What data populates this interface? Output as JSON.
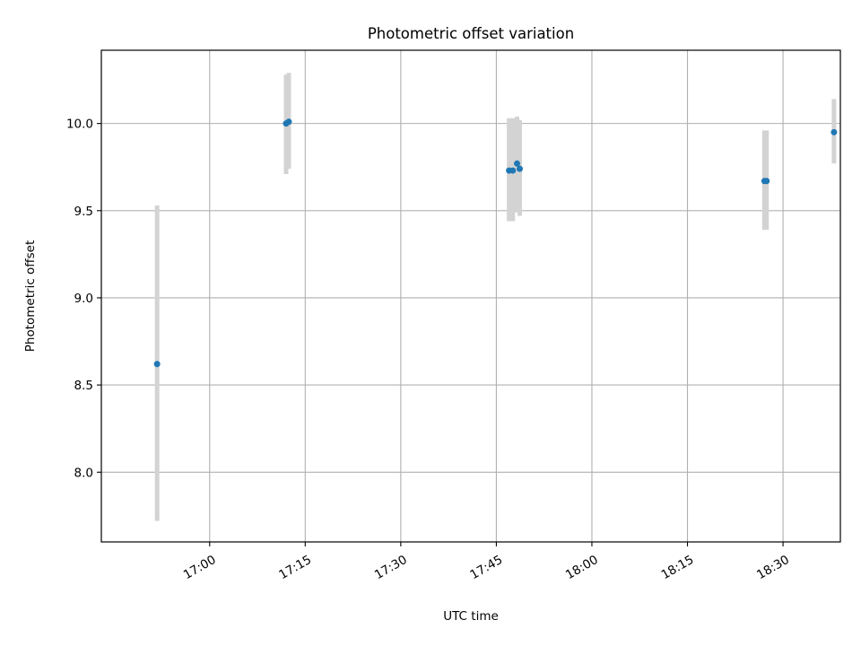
{
  "chart_data": {
    "type": "scatter",
    "title": "Photometric offset variation",
    "xlabel": "UTC time",
    "ylabel": "Photometric offset",
    "x_axis_type": "time",
    "xlim": [
      "16:43",
      "18:39"
    ],
    "ylim": [
      7.6,
      10.42
    ],
    "xticks": [
      "17:00",
      "17:15",
      "17:30",
      "17:45",
      "18:00",
      "18:15",
      "18:30"
    ],
    "yticks": [
      "8.0",
      "8.5",
      "9.0",
      "9.5",
      "10.0"
    ],
    "grid": true,
    "point_color": "#1f77b4",
    "errorbar_color": "#d3d3d3",
    "points": [
      {
        "x": "16:51:45",
        "y": 8.62,
        "ylow": 7.72,
        "yhigh": 9.53
      },
      {
        "x": "17:12:00",
        "y": 10.0,
        "ylow": 9.71,
        "yhigh": 10.28
      },
      {
        "x": "17:12:25",
        "y": 10.01,
        "ylow": 9.74,
        "yhigh": 10.29
      },
      {
        "x": "17:47:00",
        "y": 9.73,
        "ylow": 9.44,
        "yhigh": 10.03
      },
      {
        "x": "17:47:35",
        "y": 9.73,
        "ylow": 9.44,
        "yhigh": 10.03
      },
      {
        "x": "17:48:15",
        "y": 9.77,
        "ylow": 9.49,
        "yhigh": 10.04
      },
      {
        "x": "17:48:40",
        "y": 9.74,
        "ylow": 9.47,
        "yhigh": 10.02
      },
      {
        "x": "18:27:05",
        "y": 9.67,
        "ylow": 9.39,
        "yhigh": 9.96
      },
      {
        "x": "18:27:25",
        "y": 9.67,
        "ylow": 9.39,
        "yhigh": 9.96
      },
      {
        "x": "18:38:00",
        "y": 9.95,
        "ylow": 9.77,
        "yhigh": 10.14
      }
    ]
  }
}
